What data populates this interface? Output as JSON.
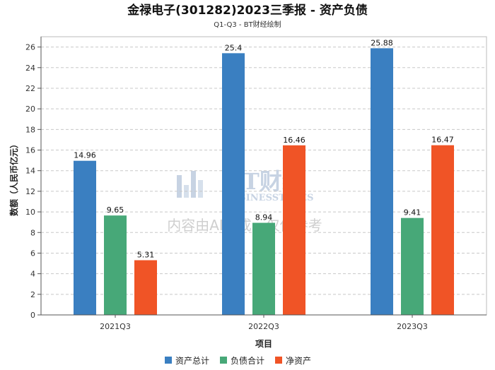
{
  "chart_data": {
    "type": "bar",
    "title": "金禄电子(301282)2023三季报 - 资产负债",
    "subtitle": "Q1-Q3 - BT财经绘制",
    "xlabel": "项目",
    "ylabel": "数额（人民币亿元）",
    "categories": [
      "2021Q3",
      "2022Q3",
      "2023Q3"
    ],
    "ylim": [
      0,
      27
    ],
    "yticks": [
      0,
      2,
      4,
      6,
      8,
      10,
      12,
      14,
      16,
      18,
      20,
      22,
      24,
      26
    ],
    "grid": true,
    "legend_position": "bottom",
    "series": [
      {
        "name": "资产总计",
        "color": "#3a7fc1",
        "values": [
          14.96,
          25.4,
          25.88
        ]
      },
      {
        "name": "负债合计",
        "color": "#47a878",
        "values": [
          9.65,
          8.94,
          9.41
        ]
      },
      {
        "name": "净资产",
        "color": "#f05426",
        "values": [
          5.31,
          16.46,
          16.47
        ]
      }
    ]
  },
  "watermark": {
    "brand": "BT财经",
    "brand_en": "BUSINESSTIMES",
    "note": "内容由AI生成，仅供参考"
  }
}
